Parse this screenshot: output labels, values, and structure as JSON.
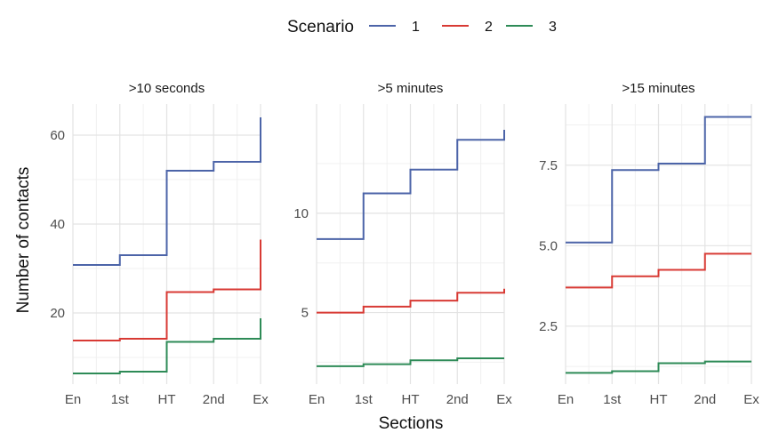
{
  "chart_data": {
    "type": "line",
    "step": true,
    "legend": {
      "title": "Scenario",
      "position": "top"
    },
    "xlabel": "Sections",
    "ylabel": "Number of contacts",
    "categories": [
      "En",
      "1st",
      "HT",
      "2nd",
      "Ex"
    ],
    "grid": true,
    "series_colors": {
      "1": "#4c64a8",
      "2": "#d83a34",
      "3": "#2e8b57"
    },
    "panels": [
      {
        "title": ">10 seconds",
        "ylim": [
          4,
          67
        ],
        "yticks": [
          20,
          40,
          60
        ],
        "series": [
          {
            "name": "1",
            "values": [
              30.8,
              33,
              52,
              54,
              64
            ]
          },
          {
            "name": "2",
            "values": [
              13.8,
              14.2,
              24.7,
              25.3,
              36.5
            ]
          },
          {
            "name": "3",
            "values": [
              6.4,
              6.8,
              13.5,
              14.2,
              18.8
            ]
          }
        ]
      },
      {
        "title": ">5 minutes",
        "ylim": [
          1.4,
          15.5
        ],
        "yticks": [
          5,
          10
        ],
        "series": [
          {
            "name": "1",
            "values": [
              8.7,
              11,
              12.2,
              13.7,
              14.2
            ]
          },
          {
            "name": "2",
            "values": [
              5,
              5.3,
              5.6,
              6,
              6.2
            ]
          },
          {
            "name": "3",
            "values": [
              2.3,
              2.4,
              2.6,
              2.7,
              2.7
            ]
          }
        ]
      },
      {
        "title": ">15 minutes",
        "ylim": [
          0.7,
          9.4
        ],
        "yticks": [
          2.5,
          5.0,
          7.5
        ],
        "ytick_labels": [
          "2.5",
          "5.0",
          "7.5"
        ],
        "series": [
          {
            "name": "1",
            "values": [
              5.1,
              7.35,
              7.55,
              9,
              9
            ]
          },
          {
            "name": "2",
            "values": [
              3.7,
              4.05,
              4.25,
              4.75,
              4.75
            ]
          },
          {
            "name": "3",
            "values": [
              1.05,
              1.1,
              1.35,
              1.4,
              1.4
            ]
          }
        ]
      }
    ]
  }
}
